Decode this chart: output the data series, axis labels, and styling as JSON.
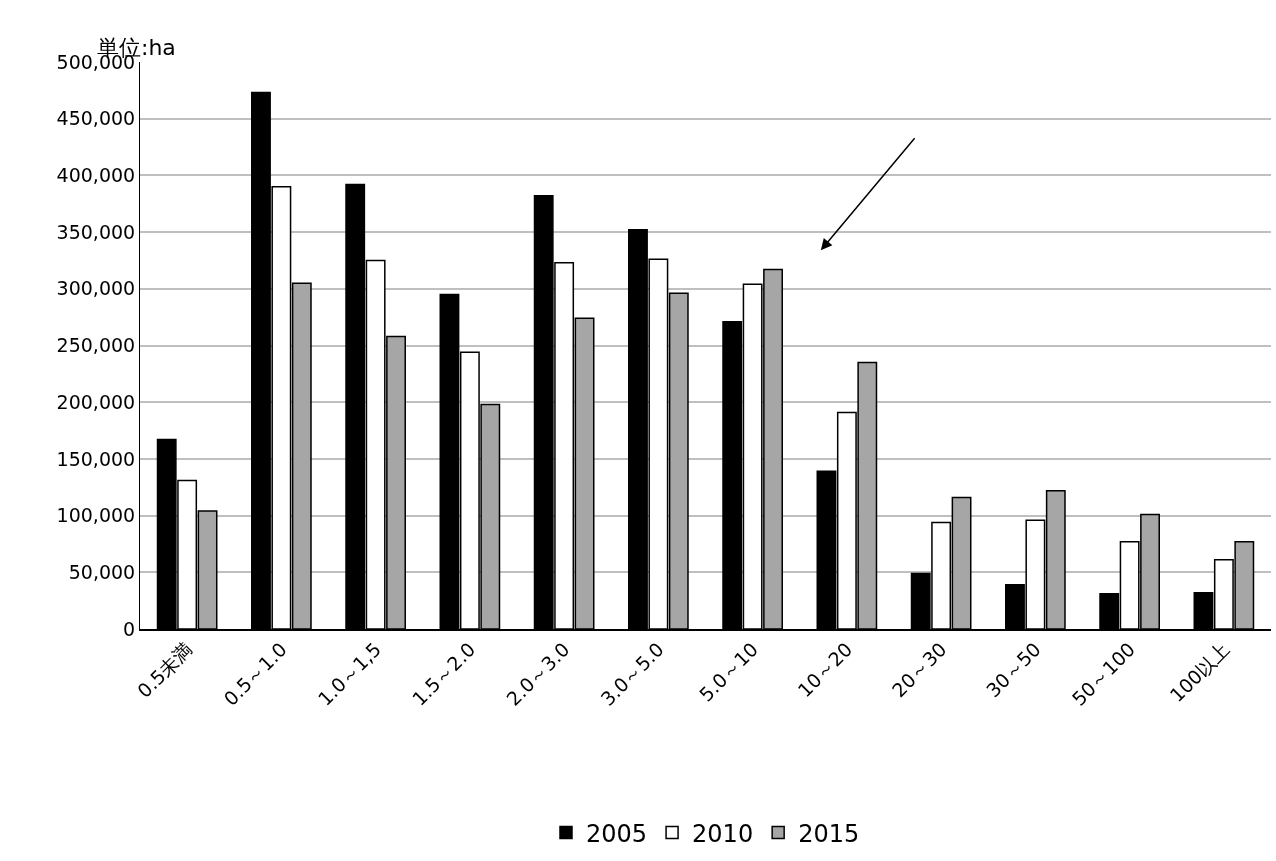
{
  "chart_data": {
    "type": "bar",
    "ylabel": "単位:ha",
    "categories": [
      "0.5未満",
      "0.5～1.0",
      "1.0～1,5",
      "1.5～2.0",
      "2.0～3.0",
      "3.0～5.0",
      "5.0～10",
      "10～20",
      "20～30",
      "30～50",
      "50～100",
      "100以上"
    ],
    "series": [
      {
        "name": "2005",
        "color": "#000000",
        "values": [
          167000,
          473000,
          392000,
          295000,
          382000,
          352000,
          271000,
          139000,
          49000,
          39000,
          31000,
          32000
        ]
      },
      {
        "name": "2010",
        "color": "#ffffff",
        "values": [
          131000,
          390000,
          325000,
          244000,
          323000,
          326000,
          304000,
          191000,
          94000,
          96000,
          77000,
          61000
        ]
      },
      {
        "name": "2015",
        "color": "#a6a6a6",
        "values": [
          104000,
          305000,
          258000,
          198000,
          274000,
          296000,
          317000,
          235000,
          116000,
          122000,
          101000,
          77000
        ]
      }
    ],
    "ylim": [
      0,
      500000
    ],
    "yticks": [
      {
        "value": 0,
        "label": "0"
      },
      {
        "value": 50000,
        "label": "50,000"
      },
      {
        "value": 100000,
        "label": "100,000"
      },
      {
        "value": 150000,
        "label": "150,000"
      },
      {
        "value": 200000,
        "label": "200,000"
      },
      {
        "value": 250000,
        "label": "250,000"
      },
      {
        "value": 300000,
        "label": "300,000"
      },
      {
        "value": 350000,
        "label": "350,000"
      },
      {
        "value": 400000,
        "label": "400,000"
      },
      {
        "value": 450000,
        "label": "450,000"
      },
      {
        "value": 500000,
        "label": "500,000"
      }
    ],
    "grid": "y",
    "legend": "bottom"
  }
}
